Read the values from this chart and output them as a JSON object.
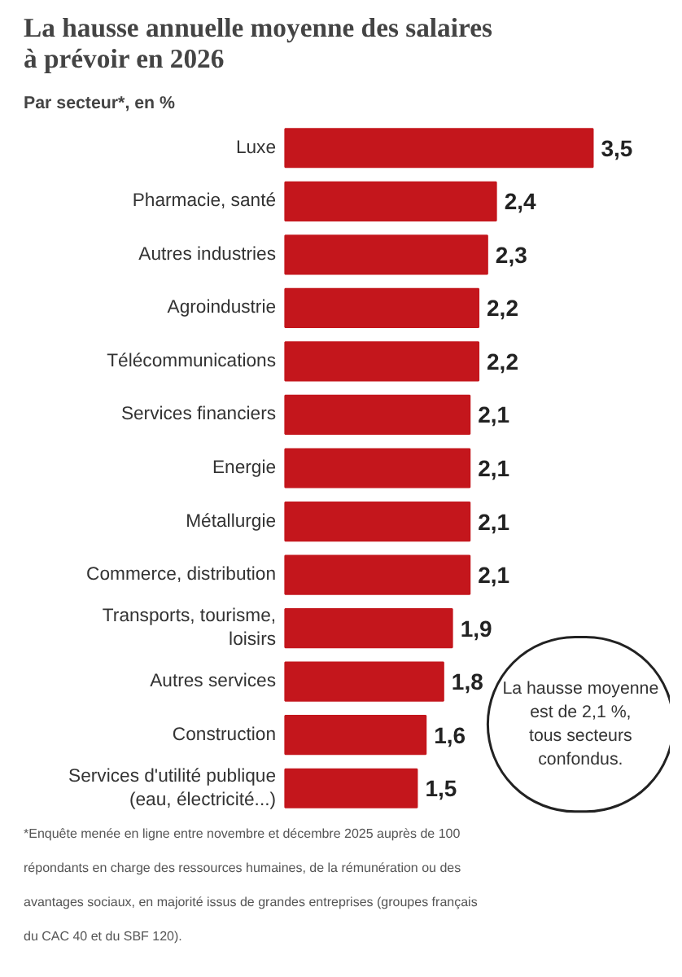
{
  "chart_data": {
    "type": "bar",
    "orientation": "horizontal",
    "title": "La hausse annuelle moyenne des salaires à prévoir en 2026",
    "subtitle": "Par secteur*, en %",
    "categories": [
      "Luxe",
      "Pharmacie, santé",
      "Autres industries",
      "Agroindustrie",
      "Télécommunications",
      "Services financiers",
      "Energie",
      "Métallurgie",
      "Commerce, distribution",
      "Transports, tourisme, loisirs",
      "Autres services",
      "Construction",
      "Services d'utilité publique (eau, électricité...)"
    ],
    "values": [
      3.5,
      2.4,
      2.3,
      2.2,
      2.2,
      2.1,
      2.1,
      2.1,
      2.1,
      1.9,
      1.8,
      1.6,
      1.5
    ],
    "color": "#c4161c",
    "value_labels": [
      "3,5",
      "2,4",
      "2,3",
      "2,2",
      "2,2",
      "2,1",
      "2,1",
      "2,1",
      "2,1",
      "1,9",
      "1,8",
      "1,6",
      "1,5"
    ],
    "annotations": [
      "La hausse moyenne est de 2,1 %, tous secteurs confondus.",
      "*Enquête menée en ligne entre novembre et décembre 2025 auprès de 100 répondants en charge des ressources humaines, de la rémunération ou des avantages sociaux, en majorité issus de grandes entreprises (groupes français du CAC 40 et du SBF 120)."
    ]
  }
}
